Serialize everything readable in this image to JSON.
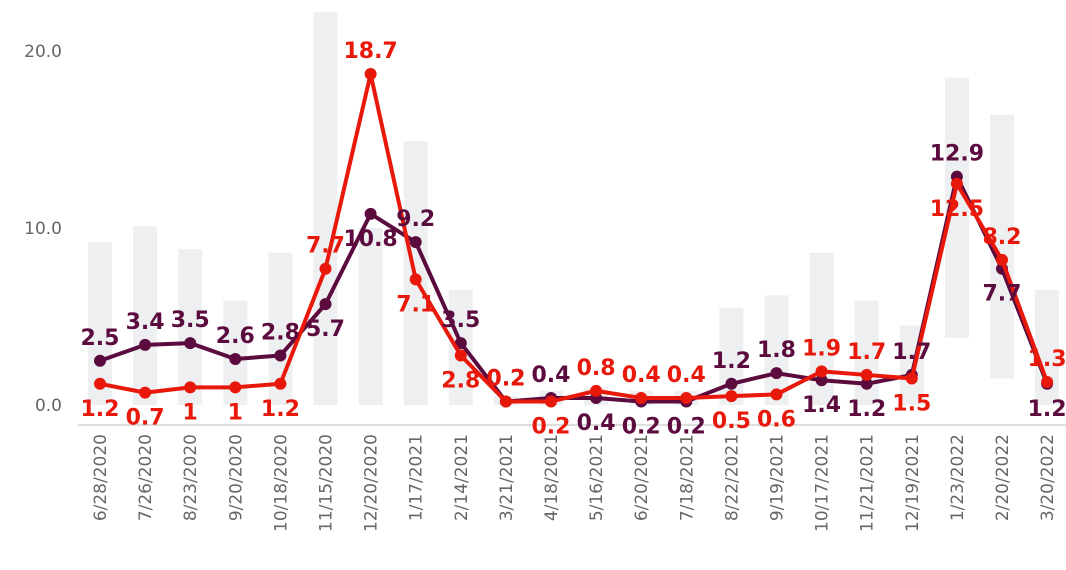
{
  "chart_data": {
    "type": "line",
    "categories": [
      "6/28/2020",
      "7/26/2020",
      "8/23/2020",
      "9/20/2020",
      "10/18/2020",
      "11/15/2020",
      "12/20/2020",
      "1/17/2021",
      "2/14/2021",
      "3/21/2021",
      "4/18/2021",
      "5/16/2021",
      "6/20/2021",
      "7/18/2021",
      "8/22/2021",
      "9/19/2021",
      "10/17/2021",
      "11/21/2021",
      "12/19/2021",
      "1/23/2022",
      "2/20/2022",
      "3/20/2022"
    ],
    "bands": {
      "color": "#eeeff1",
      "low": [
        0,
        0,
        0,
        0,
        0,
        0,
        0,
        0,
        0,
        0,
        0,
        0,
        0,
        0,
        0,
        0,
        0,
        0,
        0,
        3.8,
        1.5,
        0
      ],
      "high": [
        9.2,
        10.1,
        8.8,
        5.9,
        8.6,
        22.2,
        10.0,
        14.9,
        6.5,
        0.5,
        0.8,
        1.0,
        0.8,
        0.8,
        5.5,
        6.2,
        8.6,
        5.9,
        4.5,
        18.5,
        16.4,
        6.5
      ]
    },
    "series": [
      {
        "color": "#5c0b3f",
        "values": [
          2.5,
          3.4,
          3.5,
          2.6,
          2.8,
          5.7,
          10.8,
          9.2,
          3.5,
          0.2,
          0.4,
          0.4,
          0.2,
          0.2,
          1.2,
          1.8,
          1.4,
          1.2,
          1.7,
          12.9,
          7.7,
          1.2
        ]
      },
      {
        "color": "#e8190a",
        "values": [
          1.2,
          0.7,
          1.0,
          1.0,
          1.2,
          7.7,
          18.7,
          7.1,
          2.8,
          0.2,
          0.2,
          0.8,
          0.4,
          0.4,
          0.5,
          0.6,
          1.9,
          1.7,
          1.5,
          12.5,
          8.2,
          1.3
        ]
      }
    ],
    "ylim": [
      -1.1,
      22.5
    ],
    "yticks": [
      {
        "value": 0,
        "label": "0.0"
      },
      {
        "value": 10,
        "label": "10.0"
      },
      {
        "value": 20,
        "label": "20.0"
      }
    ]
  }
}
